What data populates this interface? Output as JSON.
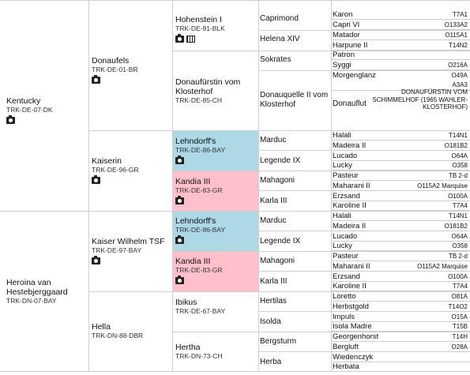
{
  "gen1": [
    {
      "name": "Kentucky",
      "reg": "TRK-DE-07-DK"
    },
    {
      "name": "Heroina van Hestebjerggaard",
      "reg": "TRK-DN-07-BAY"
    }
  ],
  "gen2": [
    {
      "name": "Donaufels",
      "reg": "TRK-DE-01-BR"
    },
    {
      "name": "Kaiserin",
      "reg": "TRK-DE-96-GR"
    },
    {
      "name": "Kaiser Wilhelm TSF",
      "reg": "TRK-DE-97-BAY"
    },
    {
      "name": "Hella",
      "reg": "TRK-DN-88-DBR"
    }
  ],
  "gen3": [
    {
      "name": "Hohenstein I",
      "reg": "TRK-DE-91-BLK"
    },
    {
      "name": "Donaufürstin vom Klosterhof",
      "reg": "TRK-DE-85-CH"
    },
    {
      "name": "Lehndorff's",
      "reg": "TRK-DE-86-BAY"
    },
    {
      "name": "Kandia III",
      "reg": "TRK-DE-83-GR"
    },
    {
      "name": "Lehndorff's",
      "reg": "TRK-DE-86-BAY"
    },
    {
      "name": "Kandia III",
      "reg": "TRK-DE-83-GR"
    },
    {
      "name": "Ibikus",
      "reg": "TRK-DE-67-BAY"
    },
    {
      "name": "Hertha",
      "reg": "TRK-DN-73-CH"
    }
  ],
  "gen4": [
    "Caprimond",
    "Helena XIV",
    "Sokrates",
    "Donauquelle II vom Klosterhof",
    "Marduc",
    "Legende IX",
    "Mahagoni",
    "Karla III",
    "Marduc",
    "Legende IX",
    "Mahagoni",
    "Karla III",
    "Hertilas",
    "Isolda",
    "Bergsturm",
    "Herba"
  ],
  "gen5": [
    {
      "n": "Karon",
      "c": "T7A1"
    },
    {
      "n": "Capri VI",
      "c": "O133A2"
    },
    {
      "n": "Matador",
      "c": "O115A1"
    },
    {
      "n": "Harpune II",
      "c": "T14N2"
    },
    {
      "n": "Patron",
      "c": ""
    },
    {
      "n": "Syggi",
      "c": "O216A"
    },
    {
      "n": "Morgenglanz",
      "c": "O49A"
    },
    {
      "n": "",
      "c": "A3A3"
    },
    {
      "n": "Halali",
      "c": "T14N1"
    },
    {
      "n": "Madeira II",
      "c": "O181B2"
    },
    {
      "n": "Lucado",
      "c": "O64A"
    },
    {
      "n": "Lucky",
      "c": "O358"
    },
    {
      "n": "Pasteur",
      "c": "TB 2-d"
    },
    {
      "n": "Maharani II",
      "c": "O115A2 Marquise"
    },
    {
      "n": "Erzsand",
      "c": "O100A"
    },
    {
      "n": "Karoline II",
      "c": "T7A4"
    },
    {
      "n": "Halali",
      "c": "T14N1"
    },
    {
      "n": "Madeira II",
      "c": "O181B2"
    },
    {
      "n": "Lucado",
      "c": "O64A"
    },
    {
      "n": "Lucky",
      "c": "O358"
    },
    {
      "n": "Pasteur",
      "c": "TB 2-d"
    },
    {
      "n": "Maharani II",
      "c": "O115A2 Marquise"
    },
    {
      "n": "Erzsand",
      "c": "O100A"
    },
    {
      "n": "Karoline II",
      "c": "T7A4"
    },
    {
      "n": "Loretto",
      "c": "O81A"
    },
    {
      "n": "Herbstgold",
      "c": "T14O2"
    },
    {
      "n": "Impuls",
      "c": "O15A"
    },
    {
      "n": "Isola Madre",
      "c": "T15B"
    },
    {
      "n": "Georgenhorst",
      "c": "T14H"
    },
    {
      "n": "Bergluft",
      "c": "O28A"
    },
    {
      "n": "Wiedenczyk",
      "c": ""
    },
    {
      "n": "Herbata",
      "c": ""
    }
  ],
  "donauflut": {
    "name": "Donauflut",
    "note": "DONAUFÜRSTIN VOM SCHIMMELHOF (1965 WAHLER-KLOSTERHOF)"
  },
  "colors": {
    "highlight_blue": "#add8e6",
    "highlight_pink": "#ffc0cb",
    "grid": "#cfcfcf"
  }
}
